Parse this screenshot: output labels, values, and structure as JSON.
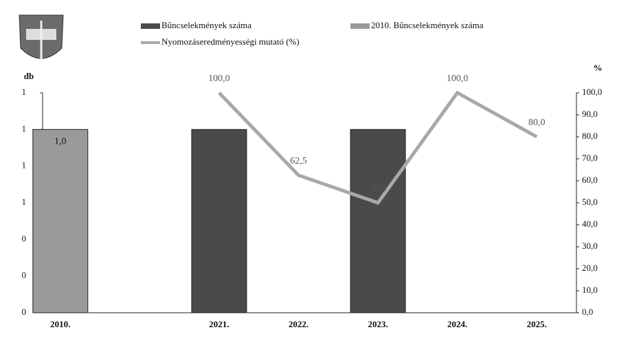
{
  "chart_data": {
    "type": "bar",
    "y_label": "db",
    "y2_label": "%",
    "categories": [
      "2010.",
      null,
      "2021.",
      "2022.",
      "2023.",
      "2024.",
      "2025."
    ],
    "ylim": [
      0,
      1.2
    ],
    "yticks": [
      {
        "value": 0,
        "label": "0"
      },
      {
        "value": 0.2,
        "label": "0"
      },
      {
        "value": 0.4,
        "label": "0"
      },
      {
        "value": 0.6,
        "label": "1"
      },
      {
        "value": 0.8,
        "label": "1"
      },
      {
        "value": 1.0,
        "label": "1"
      },
      {
        "value": 1.2,
        "label": "1"
      }
    ],
    "y2lim": [
      0,
      100
    ],
    "y2ticks": [
      {
        "value": 0,
        "label": "0,0"
      },
      {
        "value": 10,
        "label": "10,0"
      },
      {
        "value": 20,
        "label": "20,0"
      },
      {
        "value": 30,
        "label": "30,0"
      },
      {
        "value": 40,
        "label": "40,0"
      },
      {
        "value": 50,
        "label": "50,0"
      },
      {
        "value": 60,
        "label": "60,0"
      },
      {
        "value": 70,
        "label": "70,0"
      },
      {
        "value": 80,
        "label": "80,0"
      },
      {
        "value": 90,
        "label": "90,0"
      },
      {
        "value": 100,
        "label": "100,0"
      }
    ],
    "series": [
      {
        "name": "Bűncselekmények száma",
        "type": "bar",
        "color": "#4a4a4a",
        "values": [
          null,
          null,
          1,
          null,
          1,
          null,
          null
        ]
      },
      {
        "name": "2010. Bűncselekmények száma",
        "type": "bar",
        "color": "#9a9a9a",
        "values": [
          1,
          null,
          null,
          null,
          null,
          null,
          null
        ],
        "value_labels": [
          "1,0",
          null,
          null,
          null,
          null,
          null,
          null
        ]
      },
      {
        "name": "Nyomozáseredményességi mutató (%)",
        "type": "line",
        "axis": "y2",
        "color": "#a8a8a8",
        "values": [
          null,
          null,
          100,
          62.5,
          50,
          100,
          80
        ],
        "value_labels": [
          null,
          null,
          "100,0",
          "62,5",
          "50,0",
          "100,0",
          "80,0"
        ]
      }
    ]
  }
}
